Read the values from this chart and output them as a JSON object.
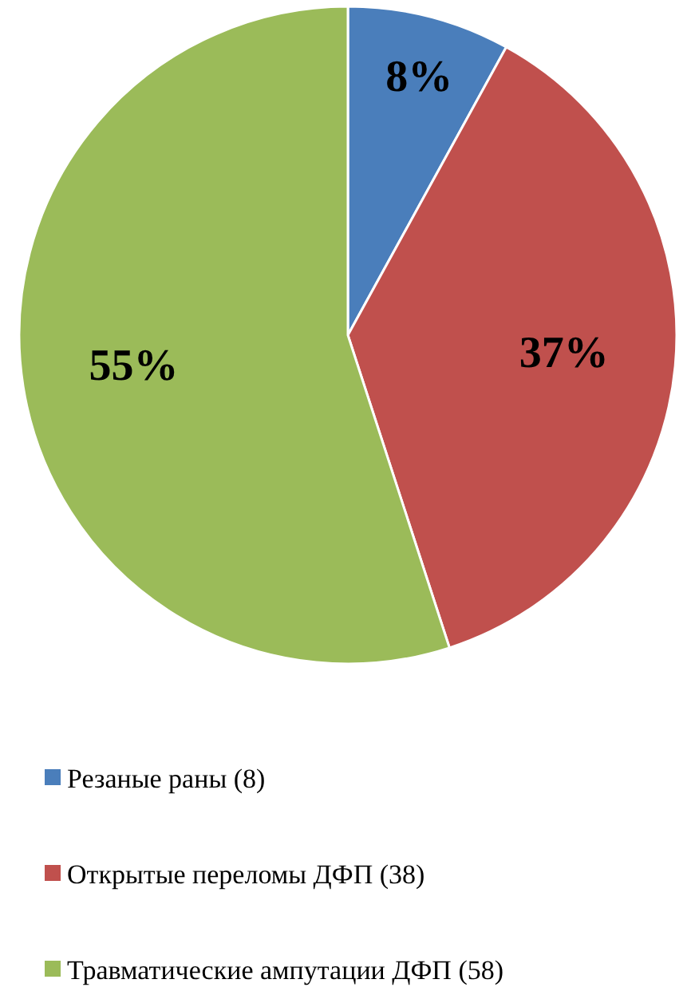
{
  "chart_data": {
    "type": "pie",
    "categories": [
      "Резаные раны (8)",
      "Открытые переломы ДФП (38)",
      "Травматические ампутации ДФП (58)"
    ],
    "values": [
      8,
      37,
      55
    ],
    "colors": [
      "#4a7ebb",
      "#c0504d",
      "#9bbb59"
    ],
    "value_labels": [
      "8%",
      "37%",
      "55%"
    ],
    "legend": "bottom"
  }
}
